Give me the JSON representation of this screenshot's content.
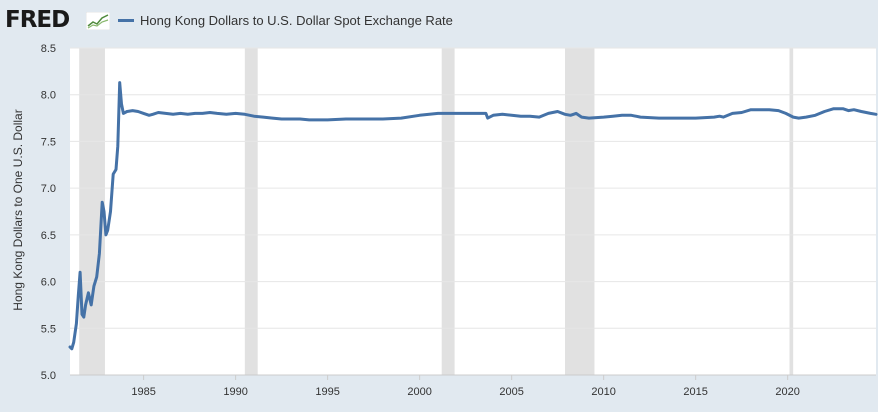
{
  "header": {
    "logo_text": "FRED",
    "legend_label": "Hong Kong Dollars to U.S. Dollar Spot Exchange Rate",
    "series_color": "#4572a7",
    "recession_color": "#e1e1e1"
  },
  "chart_data": {
    "type": "line",
    "title": "Hong Kong Dollars to U.S. Dollar Spot Exchange Rate",
    "xlabel": "",
    "ylabel": "Hong Kong Dollars to One U.S. Dollar",
    "xlim": [
      1981.0,
      2024.8
    ],
    "ylim": [
      5.0,
      8.5
    ],
    "x_ticks": [
      1985,
      1990,
      1995,
      2000,
      2005,
      2010,
      2015,
      2020
    ],
    "x_tick_labels": [
      "1985",
      "1990",
      "1995",
      "2000",
      "2005",
      "2010",
      "2015",
      "2020"
    ],
    "y_ticks": [
      5.0,
      5.5,
      6.0,
      6.5,
      7.0,
      7.5,
      8.0,
      8.5
    ],
    "y_tick_labels": [
      "5.0",
      "5.5",
      "6.0",
      "6.5",
      "7.0",
      "7.5",
      "8.0",
      "8.5"
    ],
    "recessions": [
      [
        1981.5,
        1982.9
      ],
      [
        1990.5,
        1991.2
      ],
      [
        2001.2,
        2001.9
      ],
      [
        2007.9,
        2009.5
      ],
      [
        2020.1,
        2020.3
      ]
    ],
    "series": [
      {
        "name": "Hong Kong Dollars to U.S. Dollar Spot Exchange Rate",
        "x": [
          1981.0,
          1981.1,
          1981.2,
          1981.35,
          1981.45,
          1981.55,
          1981.65,
          1981.75,
          1981.85,
          1982.0,
          1982.15,
          1982.3,
          1982.45,
          1982.6,
          1982.75,
          1982.85,
          1982.95,
          1983.05,
          1983.2,
          1983.35,
          1983.5,
          1983.6,
          1983.7,
          1983.8,
          1983.9,
          1984.1,
          1984.4,
          1984.7,
          1985.0,
          1985.3,
          1985.5,
          1985.8,
          1986.2,
          1986.6,
          1987.0,
          1987.4,
          1987.8,
          1988.2,
          1988.6,
          1989.0,
          1989.5,
          1990.0,
          1990.5,
          1991.0,
          1991.5,
          1992.0,
          1992.5,
          1993.0,
          1993.5,
          1994.0,
          1995.0,
          1996.0,
          1997.0,
          1997.5,
          1998.0,
          1999.0,
          2000.0,
          2001.0,
          2002.0,
          2003.0,
          2003.6,
          2003.7,
          2004.0,
          2004.5,
          2005.0,
          2005.5,
          2006.0,
          2006.5,
          2007.0,
          2007.5,
          2007.9,
          2008.2,
          2008.5,
          2008.8,
          2009.2,
          2010.0,
          2010.5,
          2011.0,
          2011.5,
          2012.0,
          2013.0,
          2014.0,
          2015.0,
          2016.0,
          2016.3,
          2016.5,
          2017.0,
          2017.5,
          2018.0,
          2018.5,
          2019.0,
          2019.5,
          2019.9,
          2020.3,
          2020.6,
          2021.0,
          2021.5,
          2022.0,
          2022.5,
          2023.0,
          2023.3,
          2023.6,
          2024.0,
          2024.5,
          2024.8
        ],
        "values": [
          5.3,
          5.28,
          5.35,
          5.55,
          5.85,
          6.1,
          5.65,
          5.62,
          5.75,
          5.88,
          5.75,
          5.95,
          6.05,
          6.3,
          6.85,
          6.75,
          6.5,
          6.55,
          6.75,
          7.15,
          7.2,
          7.45,
          8.13,
          7.9,
          7.8,
          7.82,
          7.83,
          7.82,
          7.8,
          7.78,
          7.79,
          7.81,
          7.8,
          7.79,
          7.8,
          7.79,
          7.8,
          7.8,
          7.81,
          7.8,
          7.79,
          7.8,
          7.79,
          7.77,
          7.76,
          7.75,
          7.74,
          7.74,
          7.74,
          7.73,
          7.73,
          7.74,
          7.74,
          7.74,
          7.74,
          7.75,
          7.78,
          7.8,
          7.8,
          7.8,
          7.8,
          7.75,
          7.78,
          7.79,
          7.78,
          7.77,
          7.77,
          7.76,
          7.8,
          7.82,
          7.79,
          7.78,
          7.8,
          7.76,
          7.75,
          7.76,
          7.77,
          7.78,
          7.78,
          7.76,
          7.75,
          7.75,
          7.75,
          7.76,
          7.77,
          7.76,
          7.8,
          7.81,
          7.84,
          7.84,
          7.84,
          7.83,
          7.8,
          7.76,
          7.75,
          7.76,
          7.78,
          7.82,
          7.85,
          7.85,
          7.83,
          7.84,
          7.82,
          7.8,
          7.79
        ]
      }
    ]
  }
}
